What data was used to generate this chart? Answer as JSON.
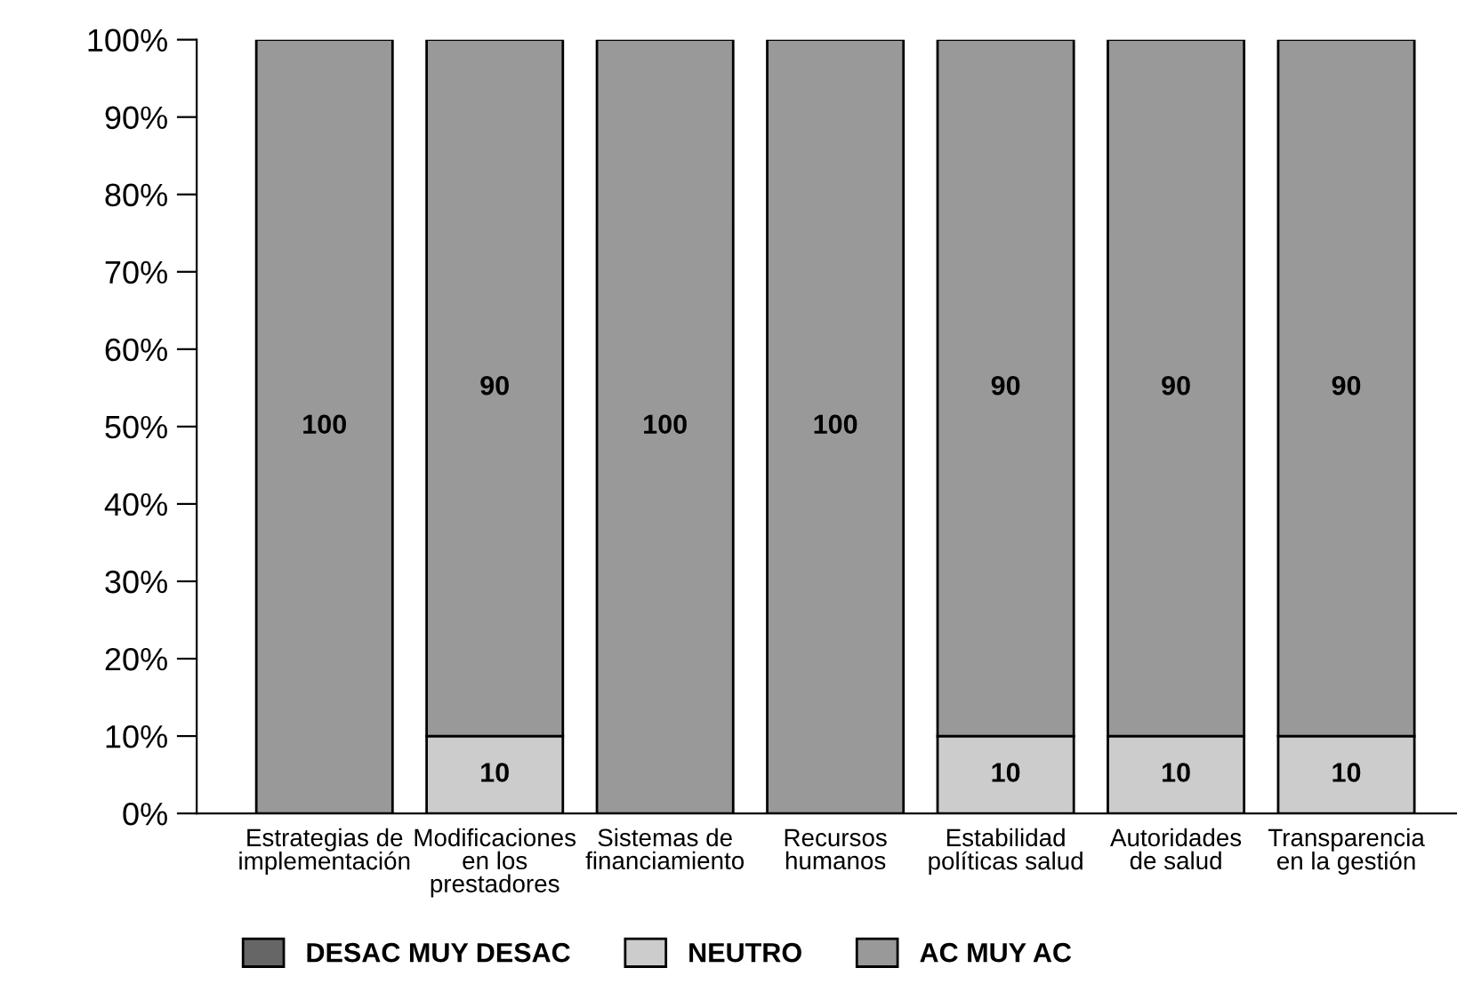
{
  "chart_data": {
    "type": "bar",
    "stacked": true,
    "categories": [
      "Estrategias de\nimplementación",
      "Modificaciones\nen los\nprestadores",
      "Sistemas de\nfinanciamiento",
      "Recursos\nhumanos",
      "Estabilidad\npolíticas salud",
      "Autoridades\nde salud",
      "Transparencia\nen la gestión"
    ],
    "series": [
      {
        "name": "DESAC MUY DESAC",
        "color": "#666666",
        "values": [
          0,
          0,
          0,
          0,
          0,
          0,
          0
        ],
        "value_labels": [
          null,
          null,
          null,
          null,
          null,
          null,
          null
        ]
      },
      {
        "name": "NEUTRO",
        "color": "#cccccc",
        "values": [
          0,
          10,
          0,
          0,
          10,
          10,
          10
        ],
        "value_labels": [
          null,
          "10",
          null,
          null,
          "10",
          "10",
          "10"
        ]
      },
      {
        "name": "AC MUY AC",
        "color": "#999999",
        "values": [
          100,
          90,
          100,
          100,
          90,
          90,
          90
        ],
        "value_labels": [
          "100",
          "90",
          "100",
          "100",
          "90",
          "90",
          "90"
        ]
      }
    ],
    "ylim": [
      0,
      100
    ],
    "yticks": [
      {
        "value": 0,
        "label": "0%"
      },
      {
        "value": 10,
        "label": "10%"
      },
      {
        "value": 20,
        "label": "20%"
      },
      {
        "value": 30,
        "label": "30%"
      },
      {
        "value": 40,
        "label": "40%"
      },
      {
        "value": 50,
        "label": "50%"
      },
      {
        "value": 60,
        "label": "60%"
      },
      {
        "value": 70,
        "label": "70%"
      },
      {
        "value": 80,
        "label": "80%"
      },
      {
        "value": 90,
        "label": "90%"
      },
      {
        "value": 100,
        "label": "100%"
      }
    ],
    "legend": "bottom left",
    "grid": false
  }
}
